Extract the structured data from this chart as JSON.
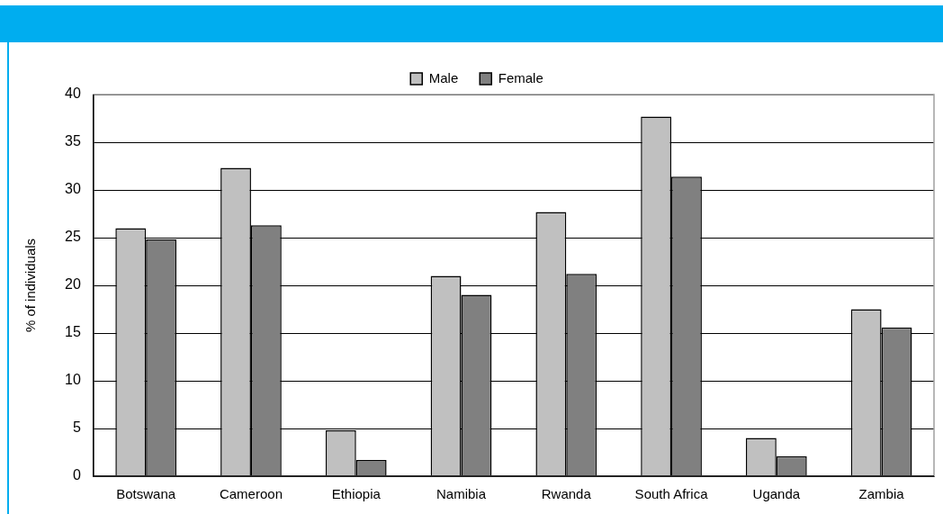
{
  "chart_data": {
    "type": "bar",
    "ylabel": "% of individuals",
    "categories": [
      "Botswana",
      "Cameroon",
      "Ethiopia",
      "Namibia",
      "Rwanda",
      "South Africa",
      "Uganda",
      "Zambia"
    ],
    "series": [
      {
        "name": "Male",
        "color": "#c0c0c0",
        "values": [
          26,
          32.3,
          4.8,
          21,
          27.7,
          37.7,
          4,
          17.5
        ]
      },
      {
        "name": "Female",
        "color": "#808080",
        "values": [
          24.8,
          26.3,
          1.7,
          19,
          21.2,
          31.4,
          2.1,
          15.6
        ]
      }
    ],
    "ylim": [
      0,
      40
    ],
    "yticks": [
      0,
      5,
      10,
      15,
      20,
      25,
      30,
      35,
      40
    ],
    "grid": "y",
    "legend": "top"
  }
}
